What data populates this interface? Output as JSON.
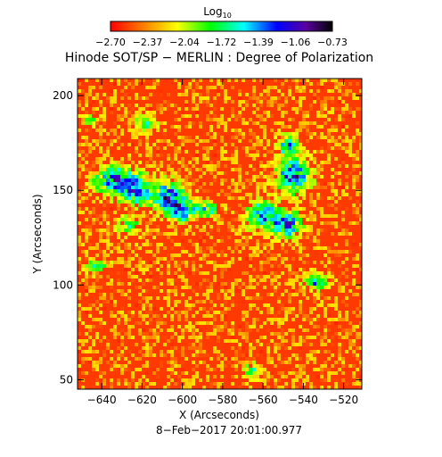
{
  "colorbar": {
    "label_main": "Log",
    "label_sub": "10",
    "ticks": [
      "−2.70",
      "−2.37",
      "−2.04",
      "−1.72",
      "−1.39",
      "−1.06",
      "−0.73"
    ]
  },
  "chart_data": {
    "type": "heatmap",
    "title": "Hinode SOT/SP − MERLIN : Degree of Polarization",
    "xlabel": "X (Arcseconds)",
    "ylabel": "Y (Arcseconds)",
    "xlim": [
      -652,
      -511
    ],
    "ylim": [
      45,
      209
    ],
    "xticks": [
      -640,
      -620,
      -600,
      -580,
      -560,
      -540,
      -520
    ],
    "xtick_labels": [
      "−640",
      "−620",
      "−600",
      "−580",
      "−560",
      "−540",
      "−520"
    ],
    "yticks": [
      50,
      100,
      150,
      200
    ],
    "ytick_labels": [
      "50",
      "100",
      "150",
      "200"
    ],
    "value_range": [
      -2.7,
      -0.73
    ],
    "colormap": [
      "#ff0000",
      "#ff7f00",
      "#ffff00",
      "#00ff00",
      "#00ffff",
      "#0000ff",
      "#5a00a0",
      "#000000"
    ],
    "date_label": "8−Feb−2017 20:01:00.977"
  }
}
